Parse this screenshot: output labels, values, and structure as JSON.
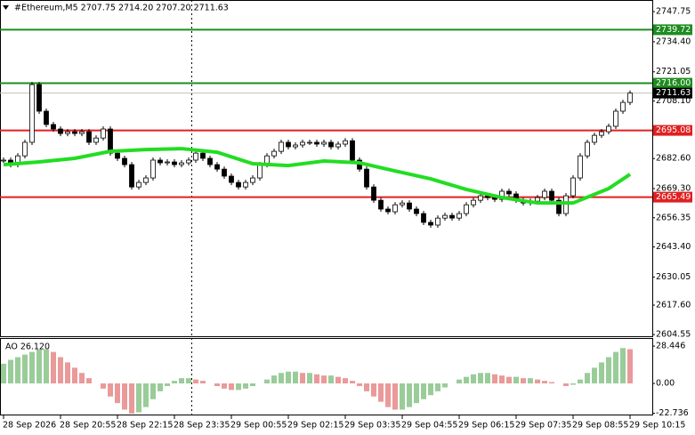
{
  "chart_data": {
    "type": "candlestick",
    "title": "#Ethereum,M5  2707.75 2714.20 2707.20 2711.63",
    "categories": [
      "28 Sep 2026",
      null,
      null,
      null,
      null,
      null,
      null,
      null,
      "28 Sep 20:55",
      null,
      null,
      null,
      null,
      null,
      null,
      null,
      "28 Sep 22:15",
      null,
      null,
      null,
      null,
      null,
      null,
      null,
      "28 Sep 23:35",
      null,
      null,
      null,
      null,
      null,
      null,
      null,
      "29 Sep 00:55",
      null,
      null,
      null,
      null,
      null,
      null,
      null,
      "29 Sep 02:15",
      null,
      null,
      null,
      null,
      null,
      null,
      null,
      "29 Sep 03:35",
      null,
      null,
      null,
      null,
      null,
      null,
      null,
      "29 Sep 04:55",
      null,
      null,
      null,
      null,
      null,
      null,
      null,
      "29 Sep 06:15",
      null,
      null,
      null,
      null,
      null,
      null,
      null,
      "29 Sep 07:35",
      null,
      null,
      null,
      null,
      null,
      null,
      null,
      "29 Sep 08:55",
      null,
      null,
      null,
      null,
      null,
      null,
      null,
      "29 Sep 10:15"
    ],
    "close": [
      2681.9,
      2679.9,
      2683.8,
      2689.8,
      2715.4,
      2703.6,
      2697.7,
      2695.7,
      2693.7,
      2694.5,
      2693.7,
      2694.5,
      2689.8,
      2691.7,
      2695.7,
      2685.0,
      2682.7,
      2679.9,
      2670.0,
      2672.0,
      2674.0,
      2681.9,
      2680.7,
      2681.1,
      2679.9,
      2680.7,
      2681.9,
      2685.0,
      2682.7,
      2679.9,
      2677.9,
      2674.8,
      2672.0,
      2670.0,
      2672.0,
      2674.0,
      2679.9,
      2683.8,
      2685.8,
      2689.8,
      2687.8,
      2688.6,
      2689.8,
      2689.8,
      2689.0,
      2689.8,
      2687.8,
      2689.0,
      2690.5,
      2681.9,
      2677.9,
      2670.0,
      2664.1,
      2660.2,
      2659.0,
      2662.1,
      2662.9,
      2660.2,
      2658.2,
      2654.3,
      2653.1,
      2656.2,
      2657.4,
      2656.2,
      2658.2,
      2662.1,
      2664.1,
      2666.1,
      2665.3,
      2664.5,
      2668.1,
      2666.9,
      2664.1,
      2662.9,
      2663.7,
      2665.3,
      2668.1,
      2664.1,
      2658.2,
      2666.1,
      2674.0,
      2683.8,
      2689.8,
      2692.9,
      2694.5,
      2696.9,
      2703.6,
      2707.5,
      2711.63
    ],
    "up_color": "#ffffff",
    "down_color": "#000000",
    "ylim": [
      2603.8,
      2752.9
    ],
    "yticks": [
      2747.75,
      {
        "value": 2734.4,
        "label": "2734.40"
      },
      2721.05,
      {
        "value": 2708.1,
        "label": "2708.10"
      },
      {
        "value": 2682.6,
        "label": "2682.60"
      },
      {
        "value": 2669.3,
        "label": "2669.30"
      },
      2656.35,
      {
        "value": 2643.4,
        "label": "2643.40"
      },
      2630.05,
      {
        "value": 2617.6,
        "label": "2617.60"
      },
      2604.55
    ],
    "levels": [
      {
        "value": 2739.72,
        "color": "#1e8c1e"
      },
      {
        "value": 2716,
        "label": "2716.00",
        "color": "#1e8c1e"
      },
      {
        "value": 2695.08,
        "color": "#e02020"
      },
      {
        "value": 2665.49,
        "color": "#e02020"
      }
    ],
    "price": {
      "value": 2711.63,
      "color": "#000000"
    },
    "ma": {
      "color": "#22dd22",
      "x": [
        0,
        5,
        10,
        15,
        20,
        25,
        30,
        35,
        40,
        45,
        50,
        55,
        60,
        65,
        70,
        75,
        80,
        85,
        88
      ],
      "values": [
        2679.9,
        2681.1,
        2682.7,
        2685.8,
        2686.6,
        2687.0,
        2685.4,
        2680.3,
        2679.5,
        2681.5,
        2680.7,
        2677.1,
        2673.6,
        2668.9,
        2665.3,
        2662.9,
        2662.9,
        2669.3,
        2675.6
      ]
    },
    "ao": {
      "title": "AO 26.120",
      "up_color": "#008000",
      "down_color": "#cc0000",
      "ylim": [
        -24.4,
        34.6
      ],
      "yticks": [
        28.446,
        {
          "value": 0,
          "label": "0.00"
        },
        -22.736
      ],
      "values": [
        15,
        18,
        20,
        22,
        24,
        26,
        26,
        24,
        20,
        16,
        12,
        8,
        4,
        0,
        -4,
        -10,
        -15,
        -20,
        -23,
        -22,
        -18,
        -12,
        -6,
        -2,
        2,
        4,
        4,
        3,
        2,
        0,
        -2,
        -4,
        -5,
        -5,
        -4,
        -2,
        0,
        3,
        6,
        8,
        9,
        9,
        8,
        8,
        7,
        6,
        6,
        5,
        4,
        2,
        -2,
        -6,
        -10,
        -14,
        -18,
        -20,
        -20,
        -18,
        -15,
        -12,
        -9,
        -6,
        -3,
        0,
        3,
        5,
        7,
        8,
        8,
        7,
        6,
        5,
        5,
        4,
        4,
        3,
        2,
        1,
        0,
        -2,
        -1,
        3,
        8,
        12,
        16,
        20,
        24,
        27,
        26.12
      ]
    }
  }
}
